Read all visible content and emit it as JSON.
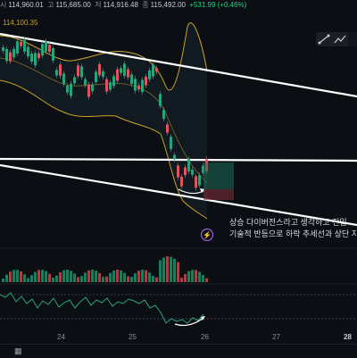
{
  "ohlc": {
    "open_label": "시",
    "open_value": "114,960.01",
    "high_label": "고",
    "high_value": "115,685.00",
    "low_label": "저",
    "low_value": "114,916.48",
    "close_label": "종",
    "close_value": "115,492.00",
    "change": "+531.99 (+0.46%)"
  },
  "price_tag": "114,100.35",
  "annotation": {
    "line1": "상승 다이버전스라고 생각하고 진입",
    "line2": "기술적 반등으로 하락 추세선과 상단 지"
  },
  "x_axis": [
    "24",
    "25",
    "26",
    "27",
    "28"
  ],
  "colors": {
    "up": "#2aa37d",
    "down": "#e0545f",
    "band": "#c9a227",
    "bg": "#0b0e13"
  },
  "icons": {
    "toolbar": [
      "trend-line-icon",
      "line-chart-icon"
    ],
    "alert": "lightning-icon",
    "bottom": "calendar-icon"
  }
}
